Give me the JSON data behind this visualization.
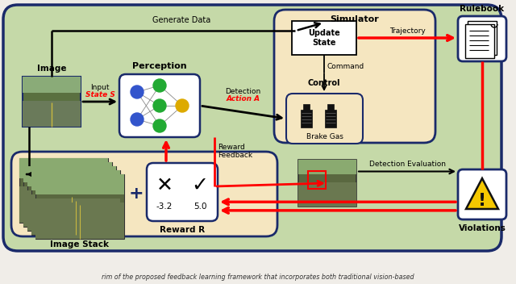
{
  "bg_color": "#c5d9a8",
  "simulator_fill": "#f5e6c0",
  "reward_stack_fill": "#f5e6c0",
  "white_fill": "#ffffff",
  "dark_border": "#1a2a6a",
  "red_color": "#cc0000",
  "black_color": "#000000",
  "caption": "rim of the proposed feedback learning framework that incorporates both traditional vision-based",
  "labels": {
    "generate_data": "Generate Data",
    "image": "Image",
    "perception": "Perception",
    "input": "Input",
    "state_s": "State S",
    "detection": "Detection",
    "action_a": "Action A",
    "reward_feedback": "Reward\nFeedback",
    "simulator": "Simulator",
    "update_state": "Update\nState",
    "trajectory": "Trajectory",
    "command": "Command",
    "control": "Control",
    "brake_gas": "Brake Gas",
    "rulebook": "Rulebook",
    "image_stack": "Image Stack",
    "reward_r": "Reward R",
    "detection_evaluation": "Detection Evaluation",
    "violations": "Violations",
    "minus_val": "-3.2",
    "plus_val": "5.0"
  },
  "figsize": [
    6.4,
    3.52
  ],
  "dpi": 100
}
